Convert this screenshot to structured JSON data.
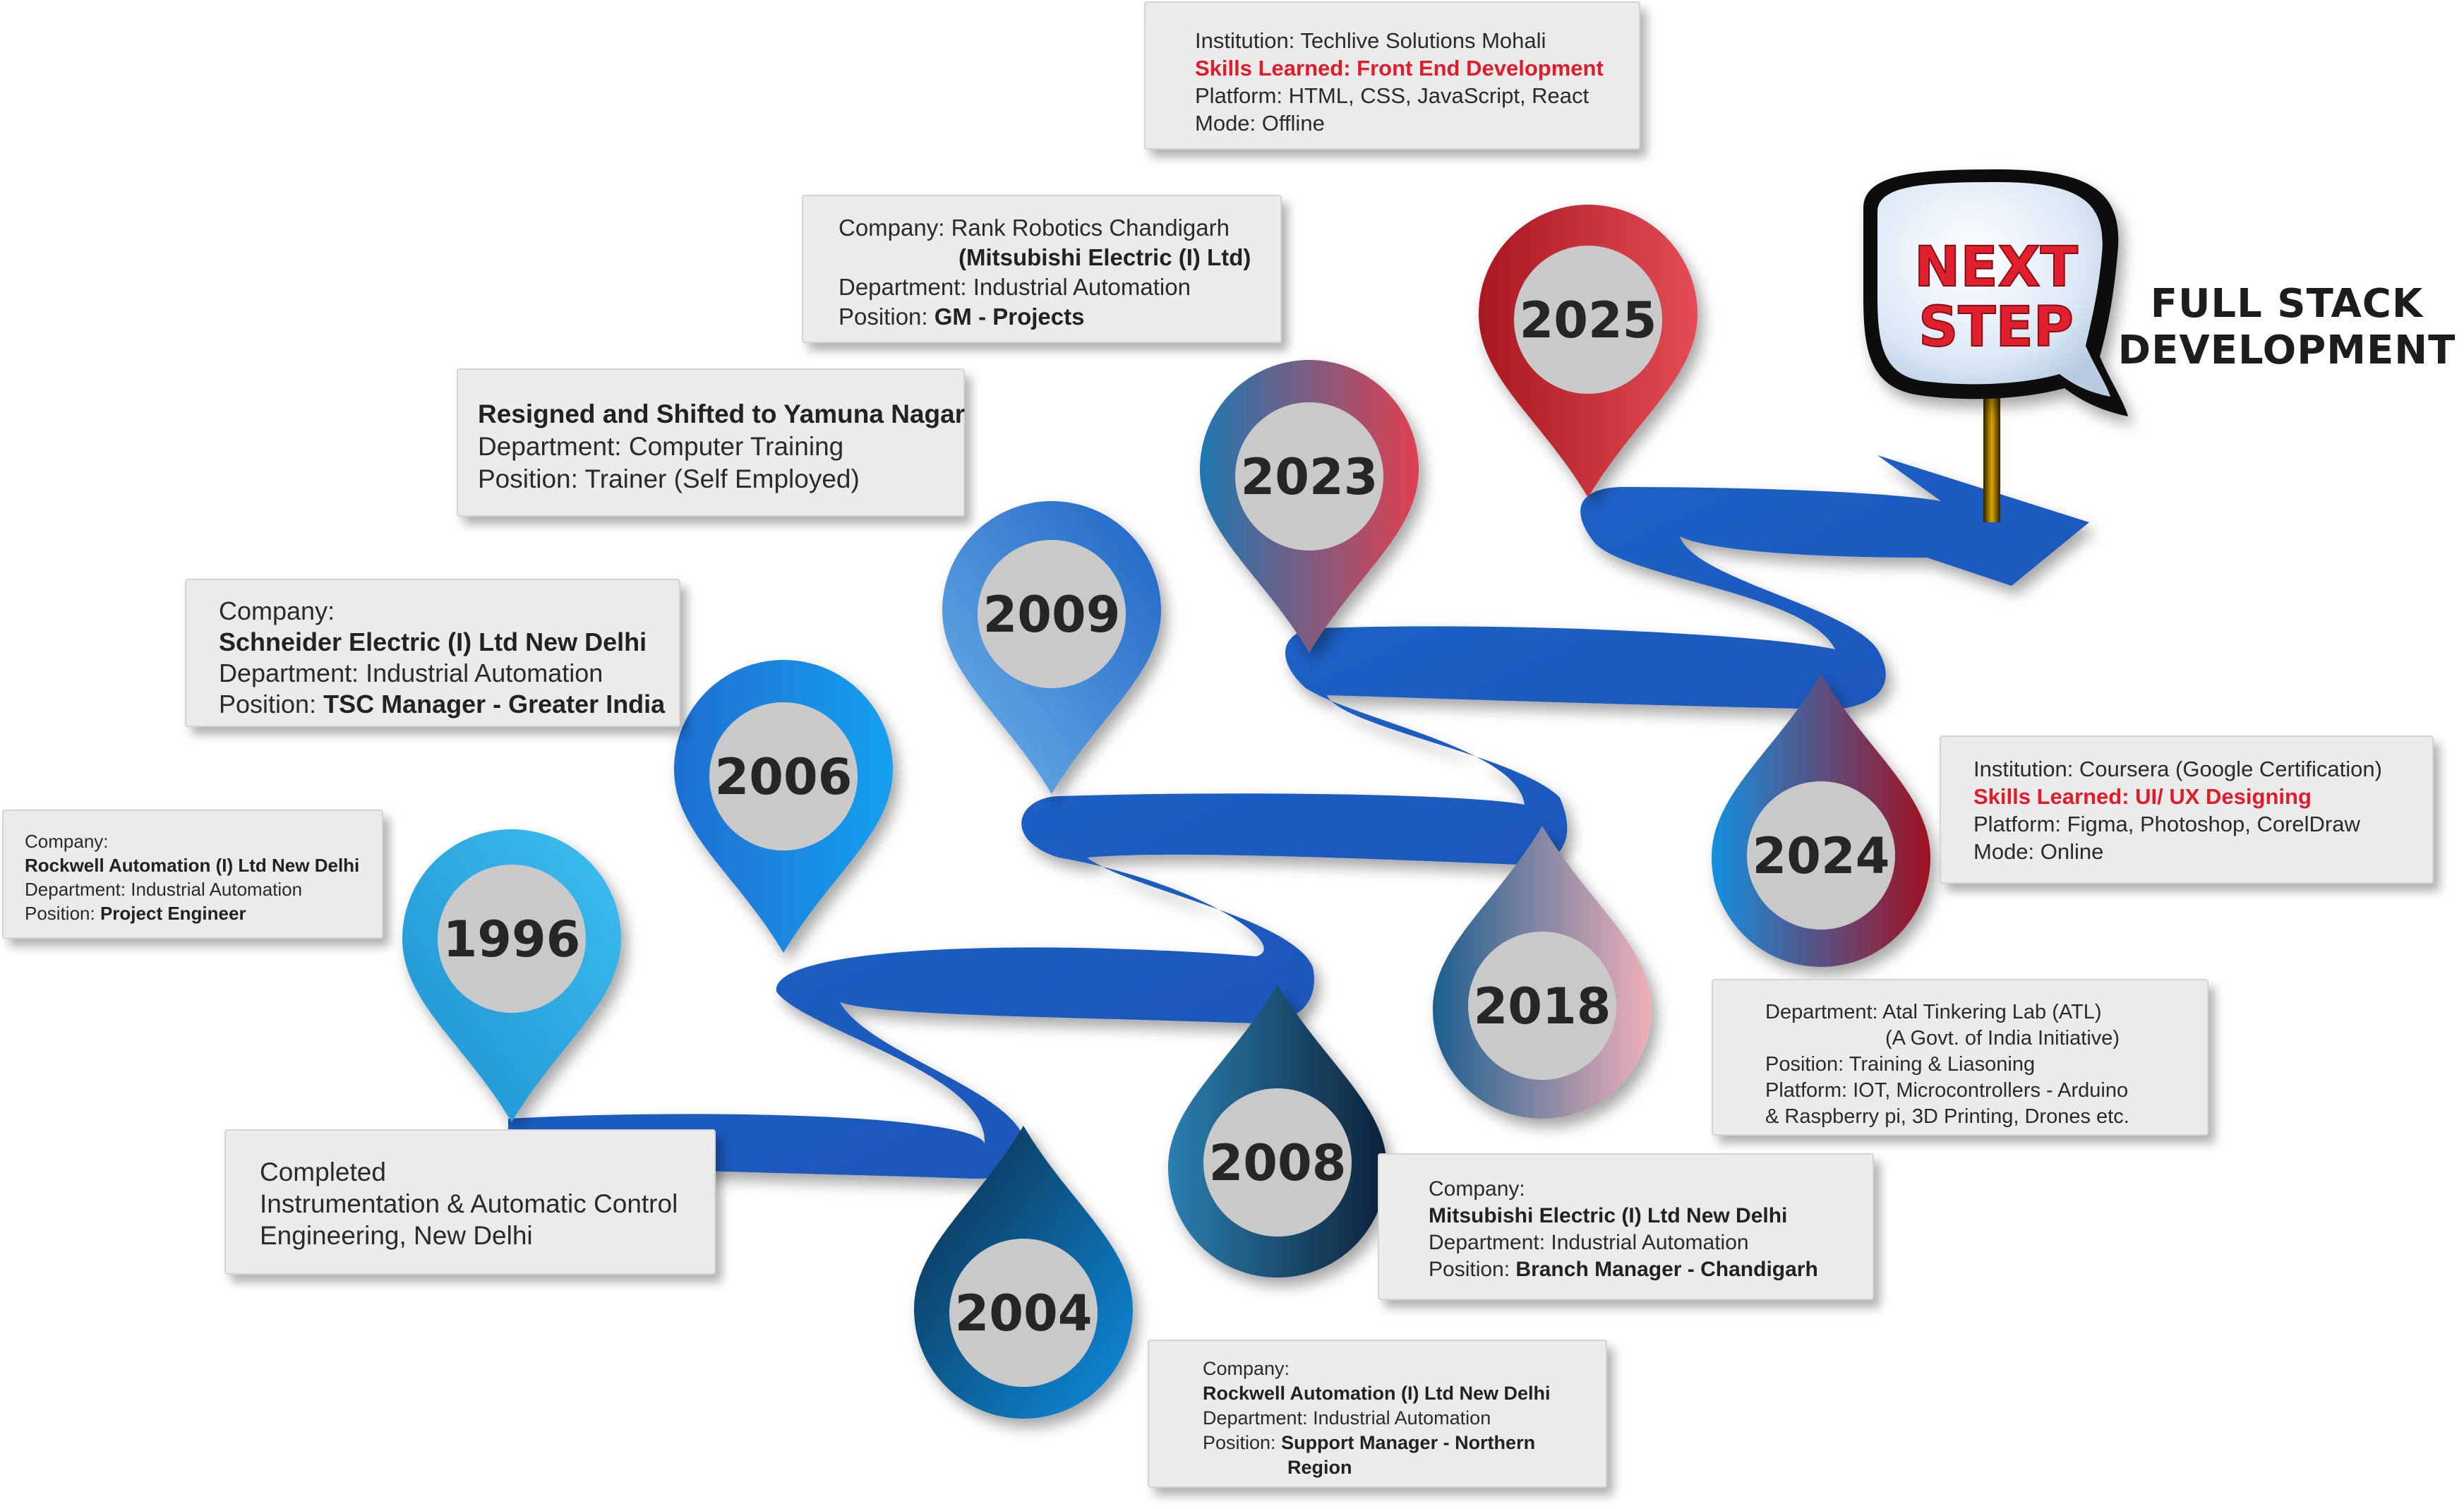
{
  "colors": {
    "road": "#1f5fc4",
    "road_dark": "#123f8f",
    "card_bg": "#ebebeb",
    "highlight_red": "#e01b2a",
    "pin_circle": "#c9c9c9",
    "next_step_text": "#e0202c"
  },
  "pins": [
    {
      "year": "1996"
    },
    {
      "year": "2004"
    },
    {
      "year": "2006"
    },
    {
      "year": "2008"
    },
    {
      "year": "2009"
    },
    {
      "year": "2018"
    },
    {
      "year": "2023"
    },
    {
      "year": "2024"
    },
    {
      "year": "2025"
    }
  ],
  "next_step": {
    "line1": "NEXT",
    "line2": "STEP",
    "goal_line1": "FULL STACK",
    "goal_line2": "DEVELOPMENT"
  },
  "cards": {
    "c1996_top": {
      "l1": "Company:",
      "l2": "Rockwell Automation (I) Ltd New Delhi",
      "l3": "Department: Industrial Automation",
      "l4_label": "Position: ",
      "l4_value": "Project Engineer"
    },
    "c1996_bottom": {
      "l1": "Completed",
      "l2": "Instrumentation & Automatic Control",
      "l3": "Engineering, New Delhi"
    },
    "c2004": {
      "l1": "Company:",
      "l2": "Rockwell Automation (I) Ltd New Delhi",
      "l3": "Department: Industrial Automation",
      "l4_label": "Position: ",
      "l4_value": "Support Manager - Northern",
      "l5": "Region"
    },
    "c2006": {
      "l1": "Company:",
      "l2": "Schneider Electric (I) Ltd New Delhi",
      "l3": "Department: Industrial Automation",
      "l4_label": "Position: ",
      "l4_value": "TSC Manager - Greater India"
    },
    "c2008": {
      "l1": "Company:",
      "l2": "Mitsubishi Electric (I) Ltd New Delhi",
      "l3": "Department: Industrial Automation",
      "l4_label": "Position: ",
      "l4_value": "Branch Manager - Chandigarh"
    },
    "c2009": {
      "l1": "Resigned and Shifted to Yamuna Nagar",
      "l2": "Department: Computer Training",
      "l3": "Position: Trainer (Self Employed)"
    },
    "c2018": {
      "l1": "Department: Atal Tinkering Lab (ATL)",
      "l2": "(A Govt. of India Initiative)",
      "l3": "Position: Training & Liasoning",
      "l4": "Platform: IOT, Microcontrollers - Arduino",
      "l5": "& Raspberry pi, 3D Printing, Drones etc."
    },
    "c2023": {
      "l1": "Company: Rank Robotics Chandigarh",
      "l2": "(Mitsubishi Electric (I) Ltd)",
      "l3": "Department: Industrial Automation",
      "l4_label": "Position: ",
      "l4_value": "GM - Projects"
    },
    "c2024": {
      "l1": "Institution: Coursera (Google Certification)",
      "l2": "Skills Learned: UI/ UX Designing",
      "l3": "Platform: Figma, Photoshop, CorelDraw",
      "l4": "Mode: Online"
    },
    "c2025": {
      "l1": "Institution: Techlive Solutions Mohali",
      "l2": "Skills Learned: Front End Development",
      "l3": "Platform: HTML, CSS, JavaScript, React",
      "l4": "Mode: Offline"
    }
  }
}
